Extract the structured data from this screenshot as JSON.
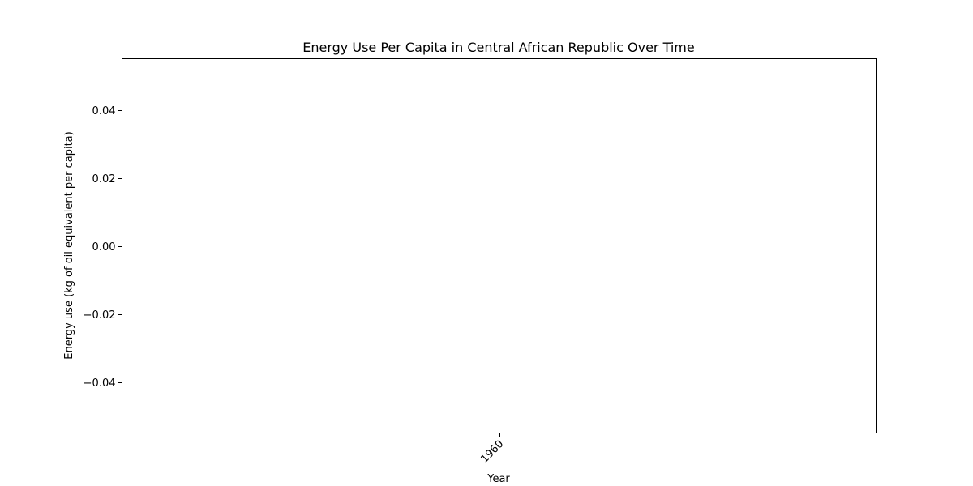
{
  "chart_data": {
    "type": "line",
    "title": "Energy Use Per Capita in Central African Republic Over Time",
    "xlabel": "Year",
    "ylabel": "Energy use (kg of oil equivalent per capita)",
    "x_ticks": [
      "1960"
    ],
    "x_range": [
      1959.9,
      1960.1
    ],
    "ylim": [
      -0.055,
      0.055
    ],
    "y_ticks": [
      0.04,
      0.02,
      0.0,
      -0.02,
      -0.04
    ],
    "y_tick_labels": [
      "0.04",
      "0.02",
      "0.00",
      "−0.02",
      "−0.04"
    ],
    "series": [
      {
        "x": [],
        "values": []
      }
    ],
    "grid": false,
    "legend": "none"
  }
}
